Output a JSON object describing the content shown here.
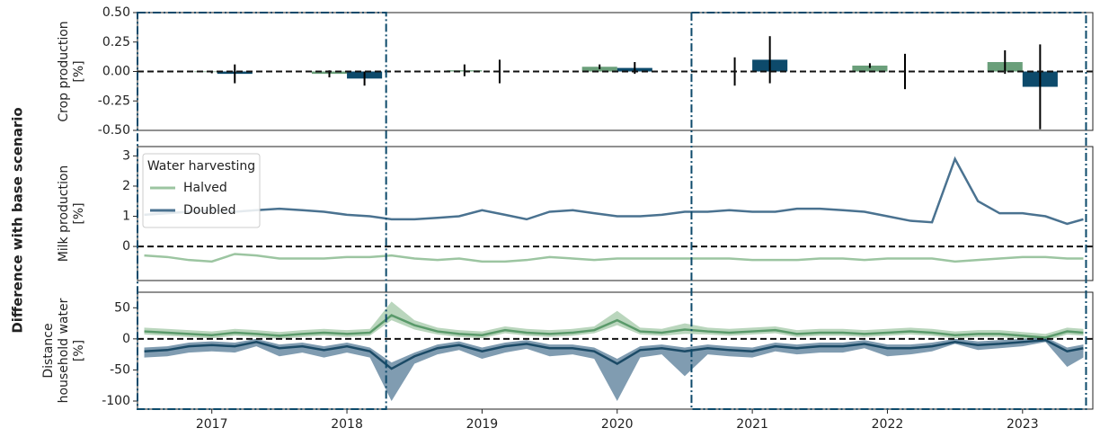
{
  "shared_ylabel": "Difference with base scenario",
  "highlight_ranges": [
    [
      2016.45,
      2018.29
    ],
    [
      2020.55,
      2023.47
    ]
  ],
  "highlight_color": "#0d4a6b",
  "chart_data": [
    {
      "type": "bar",
      "ylabel": [
        "Crop production",
        "[%]"
      ],
      "xlim": [
        2016.45,
        2023.52
      ],
      "ylim": [
        -0.5,
        0.5
      ],
      "yticks": [
        {
          "value": 0.5,
          "label": "0.50"
        },
        0.25,
        {
          "value": 0,
          "label": "0.00"
        },
        -0.25,
        {
          "value": -0.5,
          "label": "-0.50"
        }
      ],
      "reference_line": 0,
      "bar_width": 0.26,
      "series": [
        {
          "name": "Halved",
          "color": "#6a9f7a",
          "x": [
            2017.0,
            2017.87,
            2018.87,
            2019.87,
            2020.87,
            2021.87,
            2022.87
          ],
          "values": [
            -0.005,
            -0.02,
            0.01,
            0.04,
            0,
            0.05,
            0.08
          ],
          "errors": [
            0.01,
            0.03,
            0.05,
            0.02,
            0.12,
            0.02,
            0.1
          ]
        },
        {
          "name": "Doubled",
          "color": "#0d4a6b",
          "x": [
            2017.17,
            2018.13,
            2019.13,
            2020.13,
            2021.13,
            2022.13,
            2023.13
          ],
          "values": [
            -0.02,
            -0.06,
            0,
            0.03,
            0.1,
            0,
            -0.13
          ],
          "errors": [
            0.08,
            0.06,
            0.1,
            0.05,
            0.2,
            0.15,
            0.36
          ]
        }
      ]
    },
    {
      "type": "line",
      "ylabel": [
        "Milk production",
        "[%]"
      ],
      "xlim": [
        2016.45,
        2023.52
      ],
      "ylim": [
        -1.13,
        3.31
      ],
      "yticks": [
        3,
        2,
        1,
        0
      ],
      "reference_line": 0,
      "legend": "upper left",
      "legend_title": "Water harvesting",
      "x": [
        2016.5,
        2016.67,
        2016.83,
        2017.0,
        2017.17,
        2017.33,
        2017.5,
        2017.67,
        2017.83,
        2018.0,
        2018.17,
        2018.33,
        2018.5,
        2018.67,
        2018.83,
        2019.0,
        2019.17,
        2019.33,
        2019.5,
        2019.67,
        2019.83,
        2020.0,
        2020.17,
        2020.33,
        2020.5,
        2020.67,
        2020.83,
        2021.0,
        2021.17,
        2021.33,
        2021.5,
        2021.67,
        2021.83,
        2022.0,
        2022.17,
        2022.33,
        2022.5,
        2022.67,
        2022.83,
        2023.0,
        2023.17,
        2023.33,
        2023.45
      ],
      "series": [
        {
          "name": "Halved",
          "color": "#9cc5a1",
          "values": [
            -0.3,
            -0.35,
            -0.45,
            -0.5,
            -0.25,
            -0.3,
            -0.4,
            -0.4,
            -0.4,
            -0.35,
            -0.35,
            -0.3,
            -0.4,
            -0.45,
            -0.4,
            -0.5,
            -0.5,
            -0.45,
            -0.35,
            -0.4,
            -0.45,
            -0.4,
            -0.4,
            -0.4,
            -0.4,
            -0.4,
            -0.4,
            -0.45,
            -0.45,
            -0.45,
            -0.4,
            -0.4,
            -0.45,
            -0.4,
            -0.4,
            -0.4,
            -0.5,
            -0.45,
            -0.4,
            -0.35,
            -0.35,
            -0.4,
            -0.4
          ]
        },
        {
          "name": "Doubled",
          "color": "#4a7290",
          "values": [
            1.05,
            1.1,
            1.15,
            1.2,
            1.15,
            1.2,
            1.25,
            1.2,
            1.15,
            1.05,
            1.0,
            0.9,
            0.9,
            0.95,
            1.0,
            1.2,
            1.05,
            0.9,
            1.15,
            1.2,
            1.1,
            1.0,
            1.0,
            1.05,
            1.15,
            1.15,
            1.2,
            1.15,
            1.15,
            1.25,
            1.25,
            1.2,
            1.15,
            1.0,
            0.85,
            0.8,
            2.9,
            1.5,
            1.1,
            1.1,
            1.0,
            0.75,
            0.9
          ]
        }
      ]
    },
    {
      "type": "line",
      "ylabel": [
        "Distance",
        "household water",
        "[%]"
      ],
      "xlim": [
        2016.45,
        2023.52
      ],
      "ylim": [
        -113,
        75
      ],
      "yticks": [
        50,
        0,
        -50,
        -100
      ],
      "xticks": [
        2017,
        2018,
        2019,
        2020,
        2021,
        2022,
        2023
      ],
      "reference_line": 0,
      "x": [
        2016.5,
        2016.67,
        2016.83,
        2017.0,
        2017.17,
        2017.33,
        2017.5,
        2017.67,
        2017.83,
        2018.0,
        2018.17,
        2018.33,
        2018.5,
        2018.67,
        2018.83,
        2019.0,
        2019.17,
        2019.33,
        2019.5,
        2019.67,
        2019.83,
        2020.0,
        2020.17,
        2020.33,
        2020.5,
        2020.67,
        2020.83,
        2021.0,
        2021.17,
        2021.33,
        2021.5,
        2021.67,
        2021.83,
        2022.0,
        2022.17,
        2022.33,
        2022.5,
        2022.67,
        2022.83,
        2023.0,
        2023.17,
        2023.33,
        2023.45
      ],
      "series": [
        {
          "name": "Halved",
          "color": "#5a9a6a",
          "band_color": "#9cc5a1",
          "values": [
            12,
            10,
            8,
            6,
            10,
            8,
            5,
            8,
            10,
            8,
            10,
            38,
            22,
            12,
            8,
            6,
            14,
            10,
            8,
            10,
            14,
            30,
            12,
            10,
            15,
            12,
            10,
            12,
            14,
            8,
            10,
            10,
            8,
            10,
            12,
            10,
            6,
            8,
            8,
            5,
            2,
            12,
            10
          ],
          "lower": [
            7,
            5,
            3,
            1,
            5,
            3,
            0,
            3,
            5,
            3,
            5,
            30,
            15,
            7,
            3,
            1,
            9,
            5,
            3,
            5,
            9,
            22,
            7,
            5,
            8,
            7,
            5,
            7,
            9,
            3,
            5,
            5,
            3,
            5,
            7,
            5,
            1,
            3,
            3,
            0,
            -3,
            7,
            5
          ],
          "upper": [
            18,
            16,
            14,
            12,
            16,
            14,
            11,
            14,
            16,
            14,
            16,
            60,
            30,
            18,
            14,
            12,
            20,
            16,
            14,
            16,
            20,
            45,
            18,
            16,
            25,
            18,
            16,
            18,
            20,
            14,
            16,
            16,
            14,
            16,
            18,
            16,
            12,
            14,
            14,
            11,
            8,
            18,
            16
          ]
        },
        {
          "name": "Doubled",
          "color": "#1b4a66",
          "band_color": "#4a7290",
          "values": [
            -20,
            -18,
            -12,
            -10,
            -12,
            -5,
            -15,
            -12,
            -18,
            -12,
            -20,
            -48,
            -28,
            -15,
            -10,
            -20,
            -12,
            -8,
            -15,
            -15,
            -20,
            -40,
            -18,
            -15,
            -20,
            -15,
            -18,
            -20,
            -12,
            -15,
            -12,
            -12,
            -8,
            -15,
            -15,
            -12,
            -5,
            -10,
            -8,
            -5,
            -2,
            -20,
            -15
          ],
          "lower": [
            -30,
            -28,
            -22,
            -20,
            -22,
            -12,
            -28,
            -22,
            -30,
            -22,
            -30,
            -100,
            -40,
            -25,
            -18,
            -32,
            -22,
            -16,
            -28,
            -25,
            -32,
            -100,
            -30,
            -25,
            -60,
            -25,
            -28,
            -30,
            -20,
            -25,
            -22,
            -22,
            -15,
            -28,
            -25,
            -20,
            -8,
            -18,
            -15,
            -12,
            -5,
            -45,
            -30
          ],
          "upper": [
            -14,
            -12,
            -6,
            -4,
            -6,
            0,
            -9,
            -6,
            -12,
            -6,
            -14,
            -38,
            -22,
            -9,
            -4,
            -14,
            -6,
            -2,
            -9,
            -9,
            -14,
            -32,
            -12,
            -9,
            -14,
            -9,
            -12,
            -14,
            -6,
            -9,
            -6,
            -6,
            -2,
            -9,
            -9,
            -6,
            0,
            -4,
            -2,
            0,
            3,
            -14,
            -9
          ]
        }
      ]
    }
  ]
}
